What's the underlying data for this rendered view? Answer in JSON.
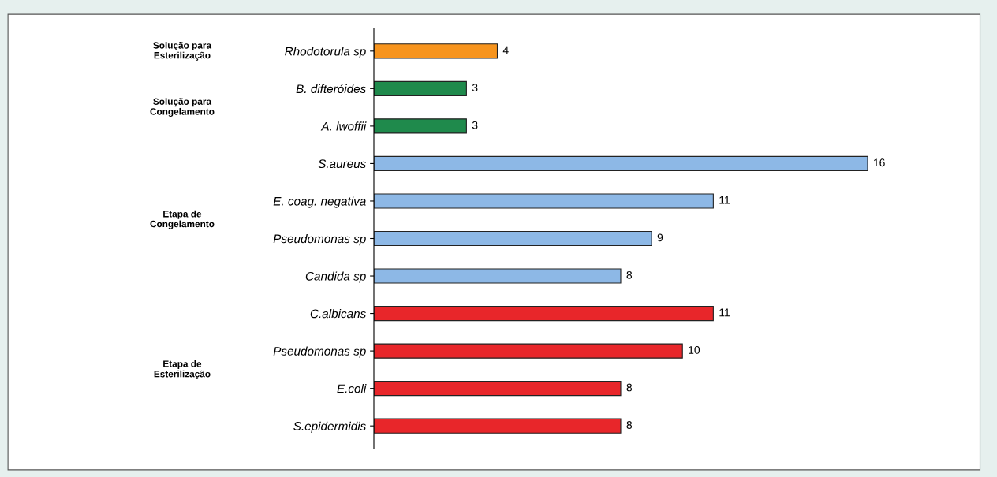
{
  "chart_data": {
    "type": "bar",
    "orientation": "horizontal",
    "data_labels": true,
    "grid": false,
    "legend": false,
    "categories": [
      "Rhodotorula sp",
      "B. difteróides",
      "A. lwoffii",
      "S.aureus",
      "E. coag. negativa",
      "Pseudomonas sp",
      "Candida sp",
      "C.albicans",
      "Pseudomonas sp",
      "E.coli",
      "S.epidermidis"
    ],
    "annotations": [
      "Solução para\nEsterilização",
      "Solução para\nCongelamento",
      "Etapa de\nCongelamento",
      "Etapa de\nEsterilização"
    ],
    "series": [
      {
        "color": "#f7941d",
        "values": [
          4,
          null,
          null,
          null,
          null,
          null,
          null,
          null,
          null,
          null,
          null
        ]
      },
      {
        "color": "#1f8a4c",
        "values": [
          null,
          3,
          3,
          null,
          null,
          null,
          null,
          null,
          null,
          null,
          null
        ]
      },
      {
        "color": "#8db8e6",
        "values": [
          null,
          null,
          null,
          16,
          11,
          9,
          8,
          null,
          null,
          null,
          null
        ]
      },
      {
        "color": "#e8262a",
        "values": [
          null,
          null,
          null,
          null,
          null,
          null,
          null,
          11,
          10,
          8,
          8
        ]
      }
    ]
  }
}
